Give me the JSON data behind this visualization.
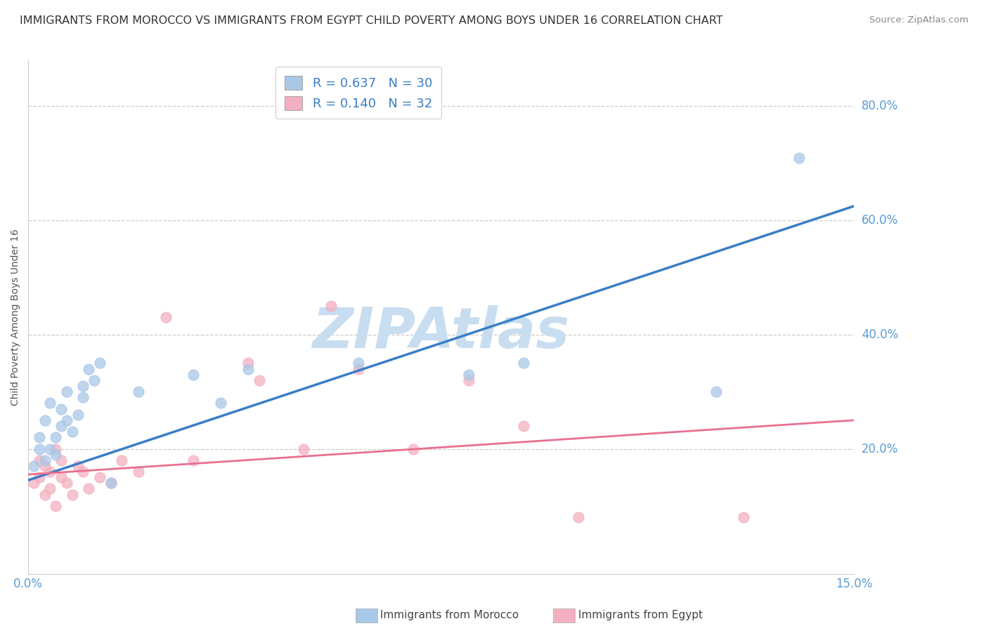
{
  "title": "IMMIGRANTS FROM MOROCCO VS IMMIGRANTS FROM EGYPT CHILD POVERTY AMONG BOYS UNDER 16 CORRELATION CHART",
  "source": "Source: ZipAtlas.com",
  "ylabel": "Child Poverty Among Boys Under 16",
  "xlim": [
    0.0,
    0.15
  ],
  "ylim": [
    -0.02,
    0.88
  ],
  "ytick_positions": [
    0.2,
    0.4,
    0.6,
    0.8
  ],
  "ytick_labels": [
    "20.0%",
    "40.0%",
    "60.0%",
    "80.0%"
  ],
  "xtick_positions": [
    0.0,
    0.15
  ],
  "xtick_labels": [
    "0.0%",
    "15.0%"
  ],
  "morocco_color": "#a8c8e8",
  "egypt_color": "#f4b0c0",
  "morocco_line_color": "#3a7ec6",
  "egypt_line_color": "#e87090",
  "R_morocco": 0.637,
  "N_morocco": 30,
  "R_egypt": 0.14,
  "N_egypt": 32,
  "watermark": "ZIPAtlas",
  "watermark_color": "#c8ddf0",
  "legend_label_morocco": "Immigrants from Morocco",
  "legend_label_egypt": "Immigrants from Egypt",
  "title_fontsize": 11.5,
  "axis_label_fontsize": 10,
  "tick_fontsize": 12,
  "legend_fontsize": 13,
  "legend_text_color": "#3a7ec6",
  "morocco_scatter_x": [
    0.001,
    0.002,
    0.002,
    0.003,
    0.003,
    0.004,
    0.004,
    0.005,
    0.005,
    0.006,
    0.006,
    0.007,
    0.007,
    0.008,
    0.009,
    0.01,
    0.01,
    0.011,
    0.012,
    0.013,
    0.015,
    0.02,
    0.03,
    0.035,
    0.04,
    0.06,
    0.08,
    0.09,
    0.125,
    0.14
  ],
  "morocco_scatter_y": [
    0.17,
    0.2,
    0.22,
    0.18,
    0.25,
    0.2,
    0.28,
    0.22,
    0.19,
    0.24,
    0.27,
    0.3,
    0.25,
    0.23,
    0.26,
    0.29,
    0.31,
    0.34,
    0.32,
    0.35,
    0.14,
    0.3,
    0.33,
    0.28,
    0.34,
    0.35,
    0.33,
    0.35,
    0.3,
    0.71
  ],
  "egypt_scatter_x": [
    0.001,
    0.002,
    0.002,
    0.003,
    0.003,
    0.004,
    0.004,
    0.005,
    0.005,
    0.006,
    0.006,
    0.007,
    0.008,
    0.009,
    0.01,
    0.011,
    0.013,
    0.015,
    0.017,
    0.02,
    0.025,
    0.03,
    0.04,
    0.042,
    0.05,
    0.055,
    0.06,
    0.07,
    0.08,
    0.09,
    0.1,
    0.13
  ],
  "egypt_scatter_y": [
    0.14,
    0.15,
    0.18,
    0.12,
    0.17,
    0.13,
    0.16,
    0.1,
    0.2,
    0.15,
    0.18,
    0.14,
    0.12,
    0.17,
    0.16,
    0.13,
    0.15,
    0.14,
    0.18,
    0.16,
    0.43,
    0.18,
    0.35,
    0.32,
    0.2,
    0.45,
    0.34,
    0.2,
    0.32,
    0.24,
    0.08,
    0.08
  ],
  "morocco_trend_x": [
    0.0,
    0.15
  ],
  "morocco_trend_y": [
    0.145,
    0.625
  ],
  "egypt_trend_x": [
    0.0,
    0.15
  ],
  "egypt_trend_y": [
    0.155,
    0.25
  ],
  "background_color": "#ffffff",
  "grid_color": "#cccccc",
  "tick_color": "#5b9bd5",
  "spine_color": "#cccccc"
}
